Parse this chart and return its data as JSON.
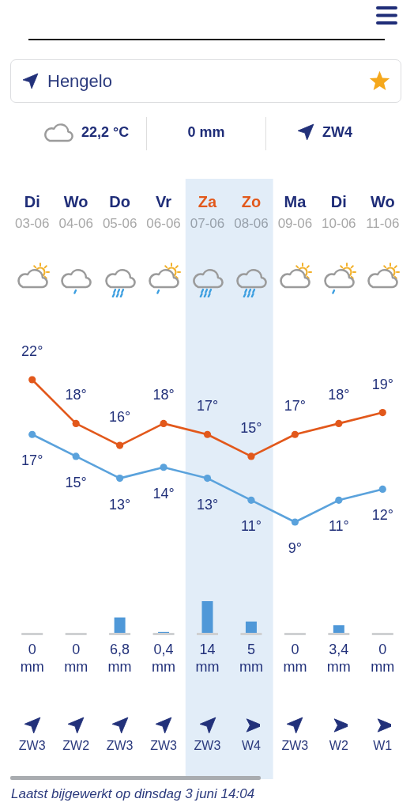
{
  "chart_data": [
    {
      "type": "other",
      "annotations": [
        "Hengelo",
        "22,2 °C",
        "0 mm",
        "ZW4"
      ]
    },
    {
      "type": "line",
      "categories": [
        "Di\n03-06",
        "Wo\n04-06",
        "Do\n05-06",
        "Vr\n06-06",
        "Za\n07-06",
        "Zo\n08-06",
        "Ma\n09-06",
        "Di\n10-06",
        "Wo\n11-06"
      ],
      "series": [
        {
          "color": "#e2581b",
          "values": [
            22,
            18,
            16,
            18,
            17,
            15,
            17,
            18,
            19
          ],
          "value_labels": [
            "22°",
            "18°",
            "16°",
            "18°",
            "17°",
            "15°",
            "17°",
            "18°",
            "19°"
          ]
        },
        {
          "color": "#5aa2dc",
          "values": [
            17,
            15,
            13,
            14,
            13,
            11,
            9,
            11,
            12
          ],
          "value_labels": [
            "17°",
            "15°",
            "13°",
            "14°",
            "13°",
            "11°",
            "9°",
            "11°",
            "12°"
          ]
        }
      ],
      "bands": [
        {
          "axis": "x",
          "from": "Za\n07-06",
          "to": "Zo\n08-06",
          "color": "#e2edf8"
        }
      ],
      "marker": "circle",
      "tick_labels": "x"
    },
    {
      "type": "bar",
      "categories": [
        "Di\n03-06",
        "Wo\n04-06",
        "Do\n05-06",
        "Vr\n06-06",
        "Za\n07-06",
        "Zo\n08-06",
        "Ma\n09-06",
        "Di\n10-06",
        "Wo\n11-06"
      ],
      "values": [
        0,
        0,
        6.8,
        0.4,
        14,
        5,
        0,
        3.4,
        0
      ],
      "color": "#4f98d8",
      "value_labels": [
        "0\nmm",
        "0\nmm",
        "6,8\nmm",
        "0,4\nmm",
        "14\nmm",
        "5\nmm",
        "0\nmm",
        "3,4\nmm",
        "0\nmm"
      ],
      "bands": [
        {
          "axis": "x",
          "from": "Za\n07-06",
          "to": "Zo\n08-06",
          "color": "#e2edf8"
        }
      ],
      "tick_labels": false
    },
    {
      "type": "other",
      "annotations": [
        "ZW3",
        "ZW2",
        "ZW3",
        "ZW3",
        "ZW3",
        "W4",
        "ZW3",
        "W2",
        "W1"
      ]
    },
    {
      "type": "other",
      "annotations": [
        "Laatst bijgewerkt op dinsdag 3 juni 14:04"
      ]
    }
  ]
}
